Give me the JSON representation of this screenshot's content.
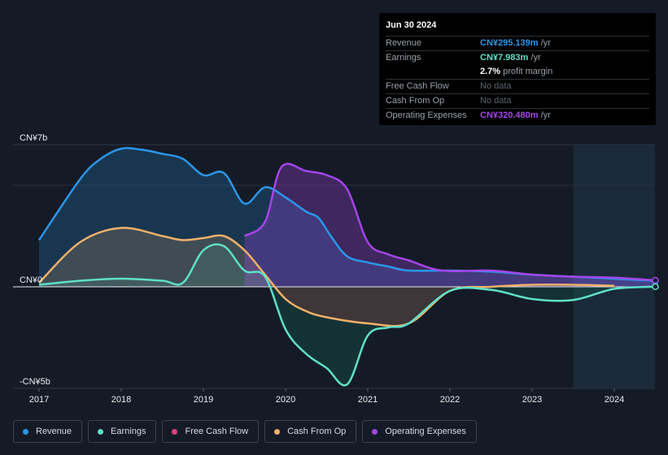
{
  "chart_data": {
    "type": "area",
    "title": "",
    "xlabel": "",
    "ylabel": "",
    "units": "CN¥ billion",
    "ylim": [
      -5,
      7
    ],
    "y_tick_labels": [
      {
        "value": 7,
        "label": "CN¥7b"
      },
      {
        "value": 0,
        "label": "CN¥0"
      },
      {
        "value": -5,
        "label": "-CN¥5b"
      }
    ],
    "x_tick_labels": [
      {
        "value": 2017,
        "label": "2017"
      },
      {
        "value": 2018,
        "label": "2018"
      },
      {
        "value": 2019,
        "label": "2019"
      },
      {
        "value": 2020,
        "label": "2020"
      },
      {
        "value": 2021,
        "label": "2021"
      },
      {
        "value": 2022,
        "label": "2022"
      },
      {
        "value": 2023,
        "label": "2023"
      },
      {
        "value": 2024,
        "label": "2024"
      }
    ],
    "xlim": [
      2016.7,
      2024.5
    ],
    "forecast_region_start": 2023.5,
    "series": [
      {
        "name": "Revenue",
        "color": "#2b96e8",
        "x": [
          2017.0,
          2017.5,
          2017.75,
          2018.0,
          2018.25,
          2018.5,
          2018.75,
          2019.0,
          2019.25,
          2019.5,
          2019.75,
          2020.0,
          2020.25,
          2020.4,
          2020.55,
          2020.75,
          2021.0,
          2021.25,
          2021.5,
          2022.0,
          2022.5,
          2023.0,
          2023.5,
          2024.0,
          2024.5
        ],
        "values": [
          2.3,
          5.3,
          6.3,
          6.8,
          6.75,
          6.55,
          6.3,
          5.5,
          5.6,
          4.1,
          4.9,
          4.4,
          3.7,
          3.4,
          2.5,
          1.5,
          1.2,
          1.0,
          0.8,
          0.8,
          0.75,
          0.6,
          0.5,
          0.4,
          0.295
        ]
      },
      {
        "name": "Earnings",
        "color": "#5fe0c8",
        "x": [
          2017.0,
          2017.5,
          2018.0,
          2018.5,
          2018.75,
          2019.0,
          2019.25,
          2019.5,
          2019.75,
          2020.0,
          2020.25,
          2020.5,
          2020.75,
          2021.0,
          2021.25,
          2021.5,
          2022.0,
          2022.5,
          2023.0,
          2023.5,
          2024.0,
          2024.5
        ],
        "values": [
          0.1,
          0.3,
          0.4,
          0.3,
          0.2,
          1.8,
          2.0,
          0.8,
          0.5,
          -2.1,
          -3.3,
          -4.0,
          -4.8,
          -2.4,
          -2.0,
          -1.8,
          -0.2,
          -0.15,
          -0.6,
          -0.65,
          -0.1,
          0.008
        ]
      },
      {
        "name": "Free Cash Flow",
        "color": "#d9457b",
        "x": [],
        "values": []
      },
      {
        "name": "Cash From Op",
        "color": "#f0b06a",
        "x": [
          2017.0,
          2017.5,
          2018.0,
          2018.5,
          2018.75,
          2019.0,
          2019.25,
          2019.5,
          2019.75,
          2020.0,
          2020.25,
          2020.5,
          2021.0,
          2021.5,
          2022.0,
          2022.5,
          2023.0,
          2023.5,
          2024.0
        ],
        "values": [
          0.2,
          2.2,
          2.9,
          2.5,
          2.3,
          2.4,
          2.5,
          1.8,
          0.6,
          -0.6,
          -1.2,
          -1.5,
          -1.8,
          -1.8,
          -0.2,
          0.0,
          0.1,
          0.1,
          0.05
        ]
      },
      {
        "name": "Operating Expenses",
        "color": "#a445e8",
        "x": [
          2019.5,
          2019.75,
          2019.95,
          2020.25,
          2020.5,
          2020.75,
          2021.0,
          2021.25,
          2021.5,
          2021.9,
          2022.5,
          2023.0,
          2023.5,
          2024.0,
          2024.5
        ],
        "values": [
          2.5,
          3.2,
          5.9,
          5.7,
          5.5,
          4.8,
          2.2,
          1.6,
          1.3,
          0.8,
          0.8,
          0.6,
          0.5,
          0.45,
          0.32
        ]
      }
    ]
  },
  "tooltip": {
    "date": "Jun 30 2024",
    "rows": [
      {
        "label": "Revenue",
        "value": "CN¥295.139m",
        "unit": " /yr",
        "color": "#2b96e8"
      },
      {
        "label": "Earnings",
        "value": "CN¥7.983m",
        "unit": " /yr",
        "color": "#5fe0c8"
      },
      {
        "label": "",
        "value": "2.7%",
        "unit": " profit margin",
        "color": "#ffffff"
      },
      {
        "label": "Free Cash Flow",
        "value": "No data",
        "unit": "",
        "color": ""
      },
      {
        "label": "Cash From Op",
        "value": "No data",
        "unit": "",
        "color": ""
      },
      {
        "label": "Operating Expenses",
        "value": "CN¥320.480m",
        "unit": " /yr",
        "color": "#a445e8"
      }
    ]
  },
  "legend": [
    {
      "label": "Revenue",
      "color": "#2b96e8"
    },
    {
      "label": "Earnings",
      "color": "#5fe0c8"
    },
    {
      "label": "Free Cash Flow",
      "color": "#d9457b"
    },
    {
      "label": "Cash From Op",
      "color": "#f0b06a"
    },
    {
      "label": "Operating Expenses",
      "color": "#a445e8"
    }
  ]
}
